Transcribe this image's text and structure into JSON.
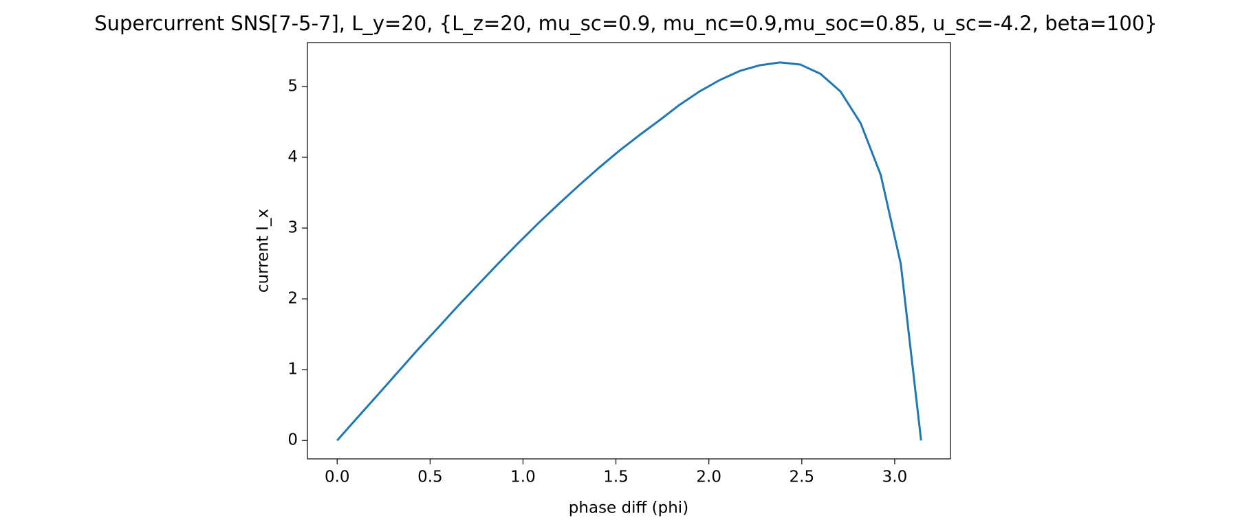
{
  "chart_data": {
    "type": "line",
    "title": "Supercurrent SNS[7-5-7], L_y=20, {L_z=20, mu_sc=0.9, mu_nc=0.9,mu_soc=0.85, u_sc=-4.2, beta=100}",
    "x_label": "phase diff (phi)",
    "y_label": "current I_x",
    "x": [
      0,
      0.108,
      0.217,
      0.325,
      0.433,
      0.542,
      0.65,
      0.758,
      0.867,
      0.975,
      1.083,
      1.192,
      1.3,
      1.408,
      1.517,
      1.625,
      1.733,
      1.842,
      1.95,
      2.058,
      2.167,
      2.275,
      2.383,
      2.492,
      2.6,
      2.708,
      2.817,
      2.925,
      3.033,
      3.142
    ],
    "series": [
      {
        "color": "#1f77b4",
        "values": [
          0,
          0.32,
          0.64,
          0.96,
          1.28,
          1.59,
          1.9,
          2.2,
          2.5,
          2.79,
          3.07,
          3.34,
          3.6,
          3.85,
          4.09,
          4.31,
          4.52,
          4.74,
          4.93,
          5.09,
          5.22,
          5.3,
          5.34,
          5.31,
          5.18,
          4.93,
          4.48,
          3.75,
          2.49,
          0
        ]
      }
    ],
    "xlim": [
      -0.16,
      3.3
    ],
    "ylim": [
      -0.26,
      5.62
    ],
    "xticks": [
      {
        "value": 0,
        "label": "0.0"
      },
      0.5,
      {
        "value": 1,
        "label": "1.0"
      },
      1.5,
      {
        "value": 2,
        "label": "2.0"
      },
      2.5,
      {
        "value": 3,
        "label": "3.0"
      }
    ],
    "yticks": [
      0,
      1,
      2,
      3,
      4,
      5
    ]
  }
}
